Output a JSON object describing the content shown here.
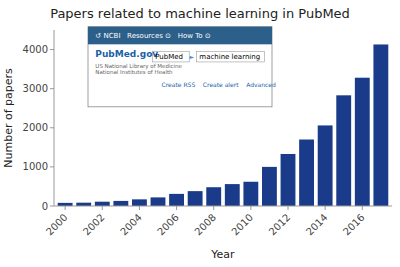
{
  "chart_data": {
    "type": "bar",
    "title": "Papers related to machine learning in PubMed",
    "x_label": "Year",
    "y_label": "Number of papers",
    "x": [
      2000,
      2001,
      2002,
      2003,
      2004,
      2005,
      2006,
      2007,
      2008,
      2009,
      2010,
      2011,
      2012,
      2013,
      2014,
      2015,
      2016,
      2017
    ],
    "values": [
      80,
      85,
      110,
      130,
      170,
      220,
      310,
      380,
      480,
      560,
      620,
      1000,
      1330,
      1700,
      2060,
      2830,
      3280,
      4130
    ],
    "color": "#1a3a8a",
    "xlim": [
      1999.4,
      2017.6
    ],
    "xticks": [
      2000,
      2002,
      2004,
      2006,
      2008,
      2010,
      2012,
      2014,
      2016
    ],
    "ylim": [
      0,
      4500
    ],
    "yticks": [
      0,
      1000,
      2000,
      3000,
      4000
    ],
    "grid": false,
    "annotations": [
      "↺ NCBI   Resources ⊙   How To ⊙",
      "PubMed.gov",
      "US National Library of Medicine",
      "National Institutes of Health",
      "PubMed",
      "►",
      "machine learning",
      "Create RSS    Create alert    Advanced"
    ]
  }
}
